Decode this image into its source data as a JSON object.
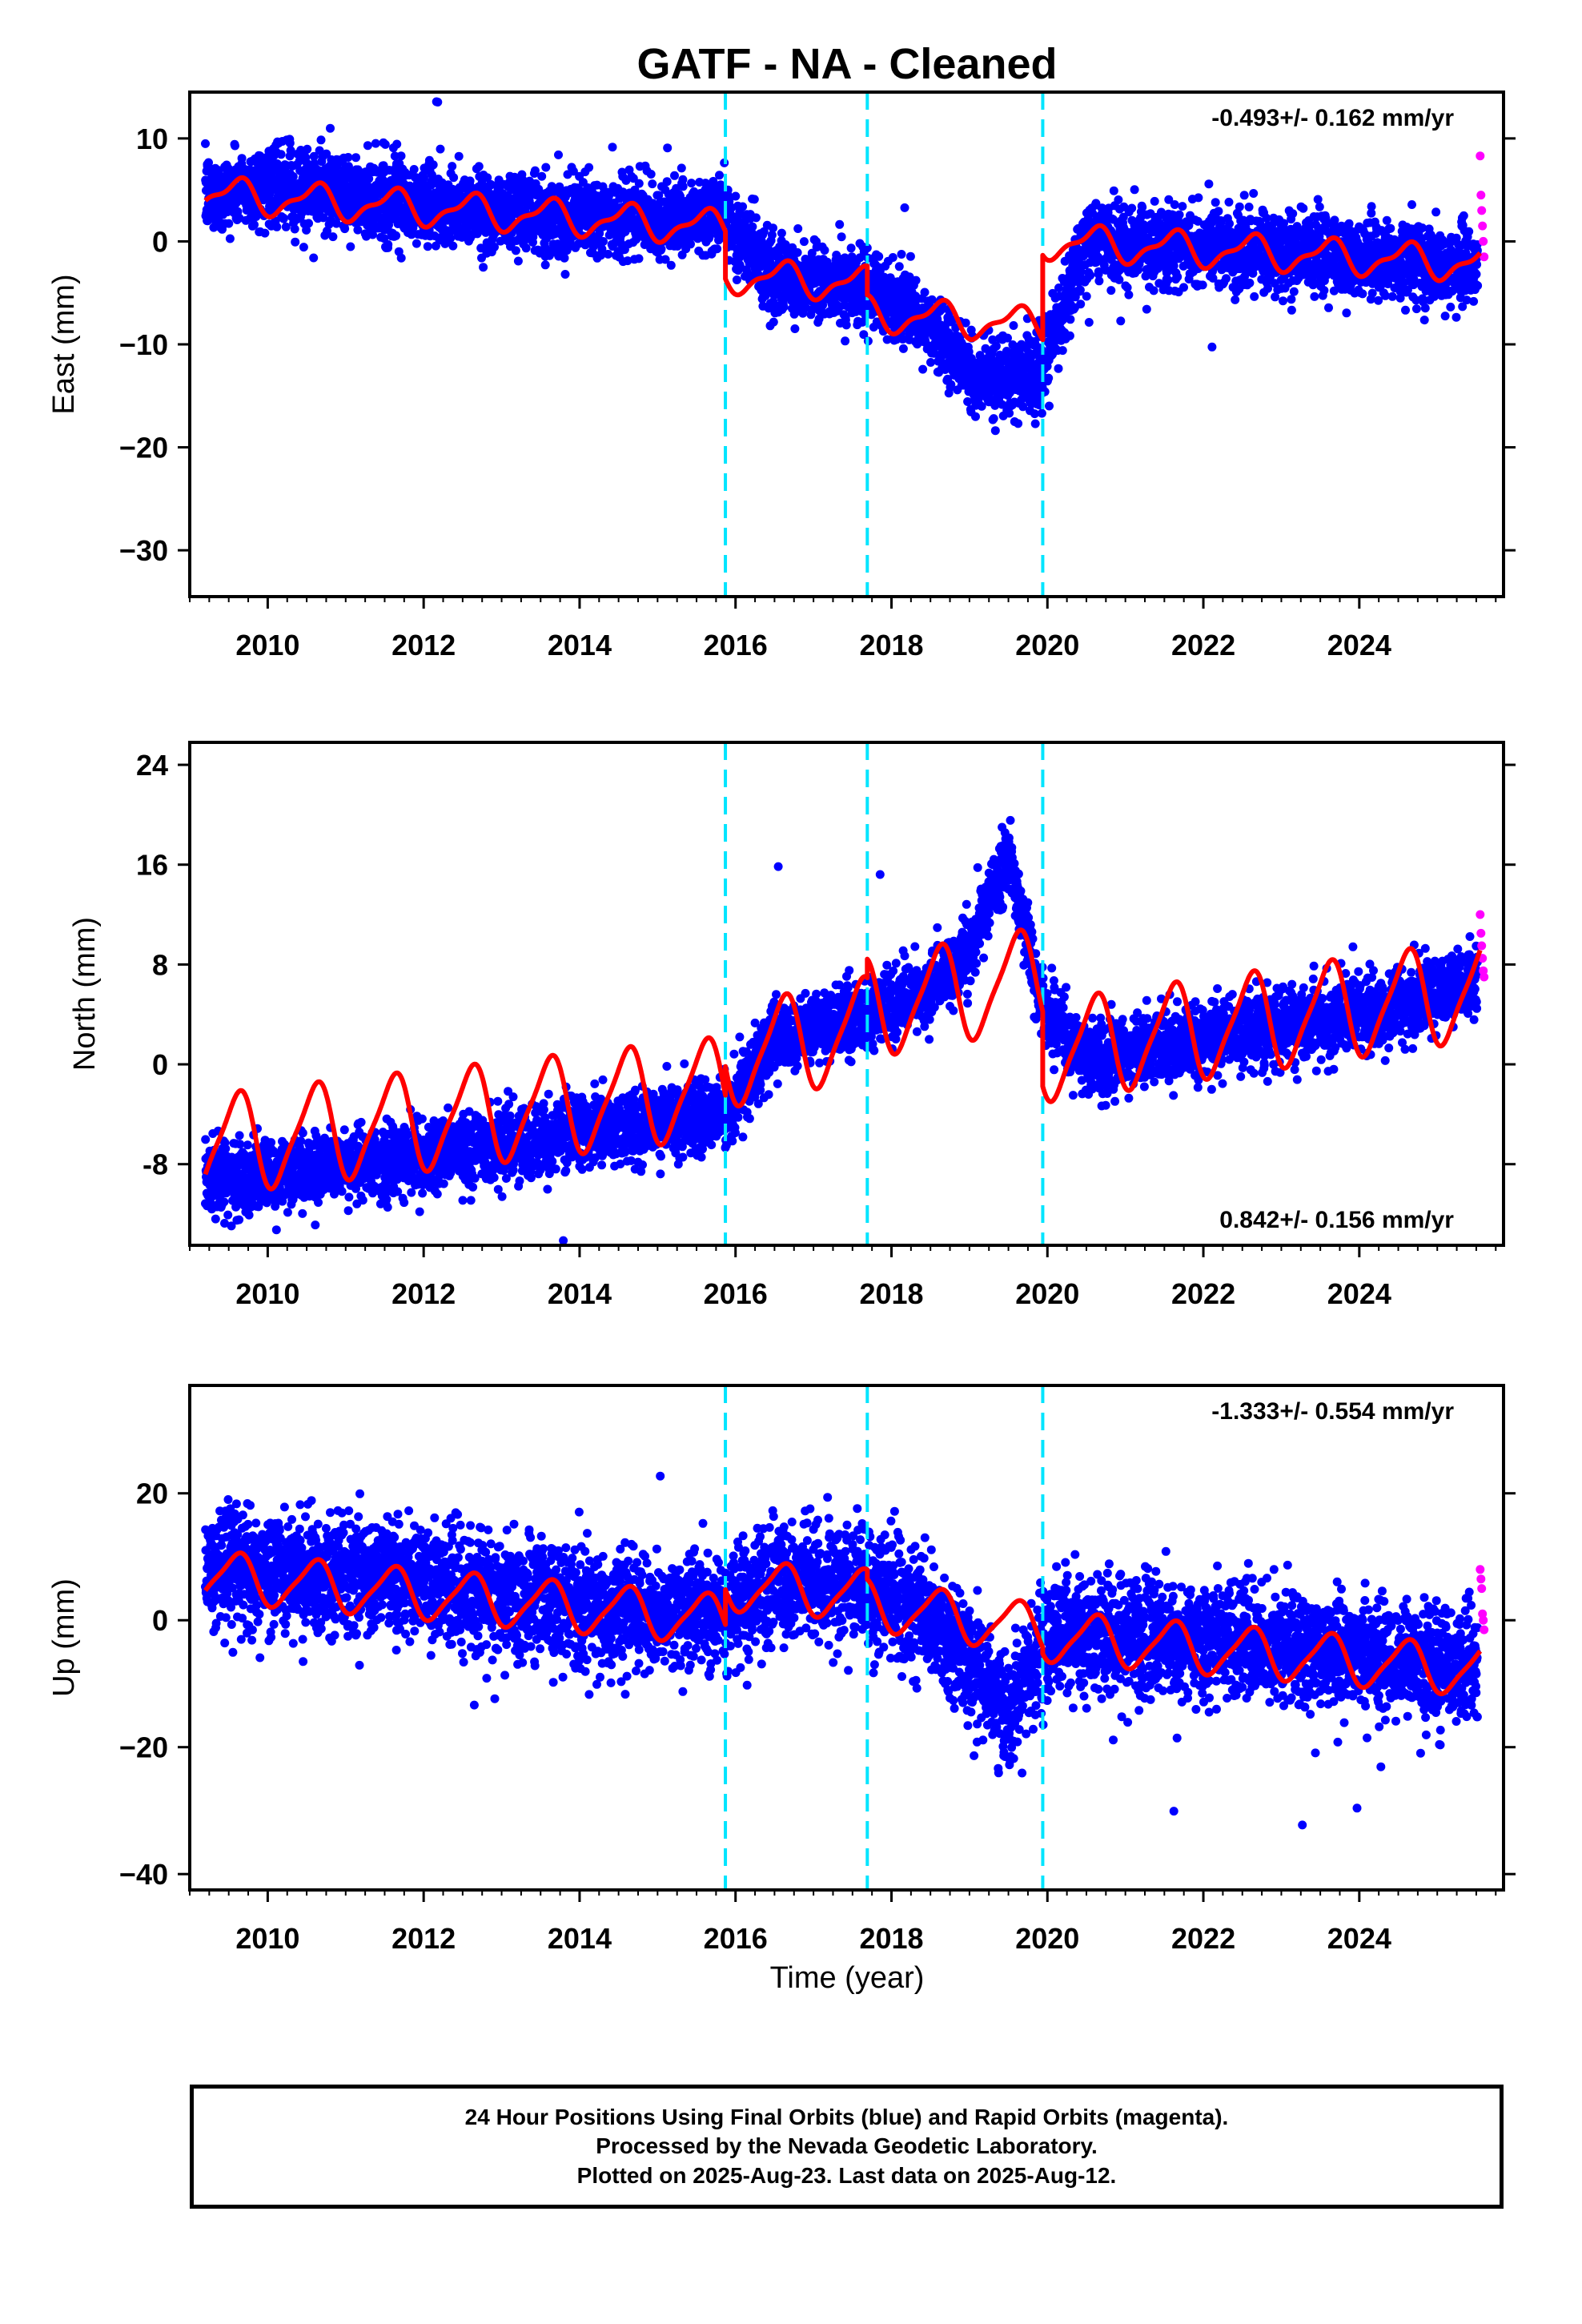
{
  "title": "GATF  - NA - Cleaned",
  "colors": {
    "final_orbits": "#0000ff",
    "rapid_orbits": "#ff00ff",
    "model_fit": "#ff0000",
    "offsets": "#00e5ff"
  },
  "chart_data": [
    {
      "type": "scatter",
      "component": "East",
      "ylabel": "East (mm)",
      "xlabel": "",
      "rate_label": "-0.493+/- 0.162 mm/yr",
      "rate_position": "top-right",
      "xlim": [
        2009.0,
        2025.85
      ],
      "ylim": [
        -34.5,
        14.5
      ],
      "xticks": [
        2010,
        2012,
        2014,
        2016,
        2018,
        2020,
        2022,
        2024
      ],
      "xtick_labels": [
        "2010",
        "2012",
        "2014",
        "2016",
        "2018",
        "2020",
        "2022",
        "2024"
      ],
      "yticks": [
        10,
        0,
        -10,
        -20,
        -30
      ],
      "ytick_labels": [
        "10",
        "0",
        "−10",
        "−20",
        "−30"
      ],
      "offset_years": [
        2015.87,
        2017.69,
        2019.94
      ],
      "series": [
        {
          "name": "Final Orbits (blue)",
          "kind": "daily scatter",
          "start": 2009.2,
          "end": 2025.52,
          "x_sample": [
            2009.2,
            2010.0,
            2011.0,
            2012.0,
            2013.0,
            2014.0,
            2015.0,
            2015.86,
            2016.5,
            2017.68,
            2018.5,
            2019.0,
            2019.5,
            2019.93,
            2020.5,
            2022.0,
            2024.0,
            2025.5
          ],
          "y_sample": [
            4.5,
            5.5,
            4.5,
            3.5,
            3.0,
            2.5,
            2.0,
            2.5,
            -3.5,
            -4.5,
            -8.0,
            -13.0,
            -13.5,
            -12.0,
            0.0,
            -0.5,
            -1.5,
            -2.5
          ],
          "scatter_sd": 1.8
        },
        {
          "name": "Rapid Orbits (magenta)",
          "kind": "scatter",
          "x": [
            2025.55,
            2025.56,
            2025.57,
            2025.58,
            2025.59,
            2025.6
          ],
          "y": [
            8.3,
            4.5,
            3.0,
            1.5,
            0.0,
            -1.5
          ]
        },
        {
          "name": "Model fit",
          "kind": "line",
          "segments": [
            {
              "x0": 2009.2,
              "x1": 2015.87,
              "y0": 4.6,
              "y1": 1.3,
              "annual_amp": 1.5,
              "semi_amp": 0.6
            },
            {
              "x0": 2015.87,
              "x1": 2017.69,
              "y0": -3.3,
              "y1": -4.2,
              "annual_amp": 1.5,
              "semi_amp": 0.6
            },
            {
              "x0": 2017.69,
              "x1": 2019.94,
              "y0": -7.0,
              "y1": -8.2,
              "annual_amp": 1.5,
              "semi_amp": 0.6
            },
            {
              "x0": 2019.94,
              "x1": 2025.55,
              "y0": 0.0,
              "y1": -2.2,
              "annual_amp": 1.5,
              "semi_amp": 0.6
            }
          ]
        }
      ]
    },
    {
      "type": "scatter",
      "component": "North",
      "ylabel": "North (mm)",
      "xlabel": "",
      "rate_label": "0.842+/- 0.156 mm/yr",
      "rate_position": "bottom-right",
      "xlim": [
        2009.0,
        2025.85
      ],
      "ylim": [
        -14.5,
        25.8
      ],
      "xticks": [
        2010,
        2012,
        2014,
        2016,
        2018,
        2020,
        2022,
        2024
      ],
      "xtick_labels": [
        "2010",
        "2012",
        "2014",
        "2016",
        "2018",
        "2020",
        "2022",
        "2024"
      ],
      "yticks": [
        24,
        16,
        8,
        0,
        -8
      ],
      "ytick_labels": [
        "24",
        "16",
        "8",
        "0",
        "-8"
      ],
      "offset_years": [
        2015.87,
        2017.69,
        2019.94
      ],
      "series": [
        {
          "name": "Final Orbits (blue)",
          "kind": "daily scatter",
          "start": 2009.2,
          "end": 2025.52,
          "x_sample": [
            2009.2,
            2010.0,
            2011.0,
            2012.0,
            2013.0,
            2014.0,
            2015.0,
            2015.86,
            2016.5,
            2017.68,
            2018.5,
            2019.0,
            2019.5,
            2019.93,
            2020.5,
            2022.0,
            2024.0,
            2025.5
          ],
          "y_sample": [
            -9.0,
            -9.0,
            -8.0,
            -7.5,
            -6.5,
            -5.5,
            -4.5,
            -4.0,
            2.0,
            4.0,
            6.0,
            9.0,
            17.0,
            5.0,
            0.5,
            2.0,
            4.0,
            6.5
          ],
          "scatter_sd": 1.4
        },
        {
          "name": "Rapid Orbits (magenta)",
          "kind": "scatter",
          "x": [
            2025.55,
            2025.56,
            2025.57,
            2025.58,
            2025.59,
            2025.6
          ],
          "y": [
            12.0,
            10.5,
            9.5,
            8.5,
            7.5,
            7.0
          ]
        },
        {
          "name": "Model fit",
          "kind": "line",
          "segments": [
            {
              "x0": 2009.2,
              "x1": 2015.87,
              "y0": -6.5,
              "y1": -1.8,
              "annual_amp": 3.8,
              "semi_amp": 0.8
            },
            {
              "x0": 2015.87,
              "x1": 2017.69,
              "y0": 0.5,
              "y1": 3.0,
              "annual_amp": 3.8,
              "semi_amp": 0.8
            },
            {
              "x0": 2017.69,
              "x1": 2019.94,
              "y0": 4.5,
              "y1": 7.0,
              "annual_amp": 3.8,
              "semi_amp": 0.8
            },
            {
              "x0": 2019.94,
              "x1": 2025.55,
              "y0": 1.0,
              "y1": 6.0,
              "annual_amp": 3.8,
              "semi_amp": 0.8
            }
          ]
        }
      ]
    },
    {
      "type": "scatter",
      "component": "Up",
      "ylabel": "Up (mm)",
      "xlabel": "Time (year)",
      "rate_label": "-1.333+/- 0.554 mm/yr",
      "rate_position": "top-right",
      "xlim": [
        2009.0,
        2025.85
      ],
      "ylim": [
        -42.5,
        37.0
      ],
      "xticks": [
        2010,
        2012,
        2014,
        2016,
        2018,
        2020,
        2022,
        2024
      ],
      "xtick_labels": [
        "2010",
        "2012",
        "2014",
        "2016",
        "2018",
        "2020",
        "2022",
        "2024"
      ],
      "yticks": [
        20,
        0,
        -20,
        -40
      ],
      "ytick_labels": [
        "20",
        "0",
        "−20",
        "−40"
      ],
      "offset_years": [
        2015.87,
        2017.69,
        2019.94
      ],
      "series": [
        {
          "name": "Final Orbits (blue)",
          "kind": "daily scatter",
          "start": 2009.2,
          "end": 2025.52,
          "x_sample": [
            2009.2,
            2010.0,
            2011.0,
            2012.0,
            2013.0,
            2014.0,
            2015.0,
            2015.86,
            2016.5,
            2017.68,
            2018.5,
            2019.0,
            2019.5,
            2019.93,
            2020.5,
            2022.0,
            2024.0,
            2025.5
          ],
          "y_sample": [
            8.0,
            8.0,
            7.0,
            5.5,
            4.0,
            2.5,
            0.5,
            2.0,
            6.0,
            5.0,
            1.0,
            -5.0,
            -15.0,
            -3.0,
            -2.0,
            -3.5,
            -5.5,
            -7.5
          ],
          "scatter_sd": 4.5
        },
        {
          "name": "Rapid Orbits (magenta)",
          "kind": "scatter",
          "x": [
            2025.55,
            2025.56,
            2025.57,
            2025.58,
            2025.59,
            2025.6
          ],
          "y": [
            8.0,
            6.5,
            5.0,
            1.0,
            0.0,
            -1.5
          ]
        },
        {
          "name": "Model fit",
          "kind": "line",
          "segments": [
            {
              "x0": 2009.2,
              "x1": 2015.87,
              "y0": 7.0,
              "y1": 0.0,
              "annual_amp": 3.8,
              "semi_amp": 0.8
            },
            {
              "x0": 2015.87,
              "x1": 2017.69,
              "y0": 5.5,
              "y1": 4.0,
              "annual_amp": 3.8,
              "semi_amp": 0.8
            },
            {
              "x0": 2017.69,
              "x1": 2019.94,
              "y0": 2.5,
              "y1": -1.5,
              "annual_amp": 3.8,
              "semi_amp": 0.8
            },
            {
              "x0": 2019.94,
              "x1": 2025.55,
              "y0": -2.5,
              "y1": -8.0,
              "annual_amp": 3.8,
              "semi_amp": 0.8
            }
          ]
        }
      ]
    }
  ],
  "caption": {
    "line1": "24 Hour Positions Using Final Orbits (blue) and Rapid Orbits (magenta).",
    "line2": "Processed by the Nevada Geodetic Laboratory.",
    "line3": "Plotted on 2025-Aug-23. Last data on 2025-Aug-12."
  }
}
